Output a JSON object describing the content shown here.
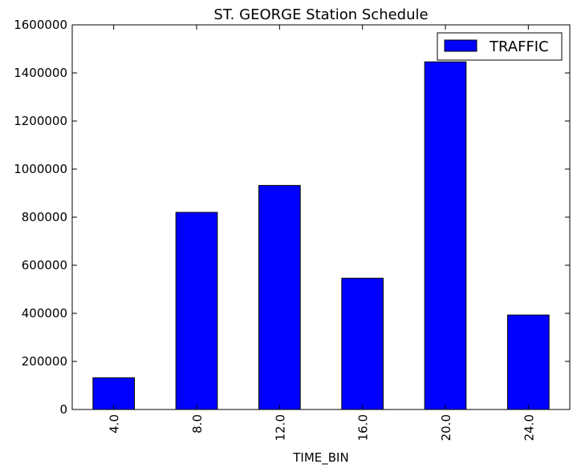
{
  "chart_data": {
    "type": "bar",
    "title": "ST. GEORGE Station Schedule",
    "xlabel": "TIME_BIN",
    "ylabel": "",
    "categories": [
      "4.0",
      "8.0",
      "12.0",
      "16.0",
      "20.0",
      "24.0"
    ],
    "series": [
      {
        "name": "TRAFFIC",
        "values": [
          132000,
          820000,
          932000,
          546000,
          1446000,
          393000
        ],
        "color": "#0000ff"
      }
    ],
    "ylim": [
      0,
      1600000
    ],
    "yticks": [
      "0",
      "200000",
      "400000",
      "600000",
      "800000",
      "1000000",
      "1200000",
      "1400000",
      "1600000"
    ],
    "grid": false,
    "legend_position": "top-right"
  }
}
